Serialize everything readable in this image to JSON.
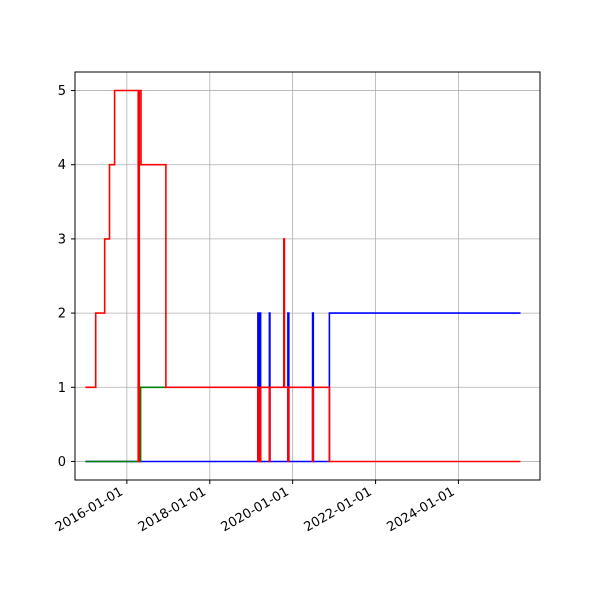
{
  "chart_data": {
    "type": "line",
    "title": "",
    "xlabel": "",
    "ylabel": "",
    "x_axis": "date",
    "xlim": [
      "2014-10-01",
      "2025-12-20"
    ],
    "ylim": [
      -0.25,
      5.25
    ],
    "grid": true,
    "x_ticks": [
      "2016-01-01",
      "2018-01-01",
      "2020-01-01",
      "2022-01-01",
      "2024-01-01"
    ],
    "y_ticks": [
      0,
      1,
      2,
      3,
      4,
      5
    ],
    "colors": {
      "blue": "#0000ff",
      "green": "#008000",
      "red": "#ff0000",
      "grid": "#b0b0b0"
    },
    "series": [
      {
        "color": "#0000ff",
        "step": true,
        "points": [
          [
            "2015-01-01",
            0
          ],
          [
            "2019-03-01",
            0
          ],
          [
            "2019-03-01",
            2
          ],
          [
            "2019-03-10",
            2
          ],
          [
            "2019-03-10",
            0
          ],
          [
            "2019-03-15",
            0
          ],
          [
            "2019-03-15",
            2
          ],
          [
            "2019-03-25",
            2
          ],
          [
            "2019-03-25",
            0
          ],
          [
            "2019-06-10",
            0
          ],
          [
            "2019-06-10",
            2
          ],
          [
            "2019-06-15",
            2
          ],
          [
            "2019-06-15",
            0
          ],
          [
            "2019-11-20",
            0
          ],
          [
            "2019-11-20",
            2
          ],
          [
            "2019-11-28",
            2
          ],
          [
            "2019-11-28",
            0
          ],
          [
            "2020-06-25",
            0
          ],
          [
            "2020-06-25",
            2
          ],
          [
            "2020-07-01",
            2
          ],
          [
            "2020-07-01",
            0
          ],
          [
            "2020-11-20",
            0
          ],
          [
            "2020-11-20",
            2
          ],
          [
            "2025-07-01",
            2
          ]
        ]
      },
      {
        "color": "#008000",
        "step": true,
        "points": [
          [
            "2015-01-01",
            0
          ],
          [
            "2016-05-01",
            0
          ],
          [
            "2016-05-01",
            1
          ],
          [
            "2016-12-20",
            1
          ],
          [
            "2016-12-20",
            1
          ]
        ]
      },
      {
        "color": "#ff0000",
        "step": true,
        "points": [
          [
            "2015-01-01",
            1
          ],
          [
            "2015-04-01",
            1
          ],
          [
            "2015-04-01",
            2
          ],
          [
            "2015-06-20",
            2
          ],
          [
            "2015-06-20",
            3
          ],
          [
            "2015-08-01",
            3
          ],
          [
            "2015-08-01",
            4
          ],
          [
            "2015-09-15",
            4
          ],
          [
            "2015-09-15",
            5
          ],
          [
            "2016-04-10",
            5
          ],
          [
            "2016-04-10",
            0
          ],
          [
            "2016-04-20",
            0
          ],
          [
            "2016-04-20",
            5
          ],
          [
            "2016-05-05",
            5
          ],
          [
            "2016-05-05",
            4
          ],
          [
            "2016-12-10",
            4
          ],
          [
            "2016-12-10",
            1
          ],
          [
            "2019-03-01",
            1
          ],
          [
            "2019-03-01",
            0
          ],
          [
            "2019-03-10",
            0
          ],
          [
            "2019-03-10",
            1
          ],
          [
            "2019-03-15",
            1
          ],
          [
            "2019-03-15",
            0
          ],
          [
            "2019-03-25",
            0
          ],
          [
            "2019-03-25",
            1
          ],
          [
            "2019-06-10",
            1
          ],
          [
            "2019-06-10",
            0
          ],
          [
            "2019-06-15",
            0
          ],
          [
            "2019-06-15",
            1
          ],
          [
            "2019-10-15",
            1
          ],
          [
            "2019-10-15",
            3
          ],
          [
            "2019-10-20",
            3
          ],
          [
            "2019-10-20",
            1
          ],
          [
            "2019-11-20",
            1
          ],
          [
            "2019-11-20",
            0
          ],
          [
            "2019-11-28",
            0
          ],
          [
            "2019-11-28",
            1
          ],
          [
            "2020-06-25",
            1
          ],
          [
            "2020-06-25",
            0
          ],
          [
            "2020-07-01",
            0
          ],
          [
            "2020-07-01",
            1
          ],
          [
            "2020-11-20",
            1
          ],
          [
            "2020-11-20",
            0
          ],
          [
            "2025-07-01",
            0
          ]
        ]
      }
    ]
  }
}
